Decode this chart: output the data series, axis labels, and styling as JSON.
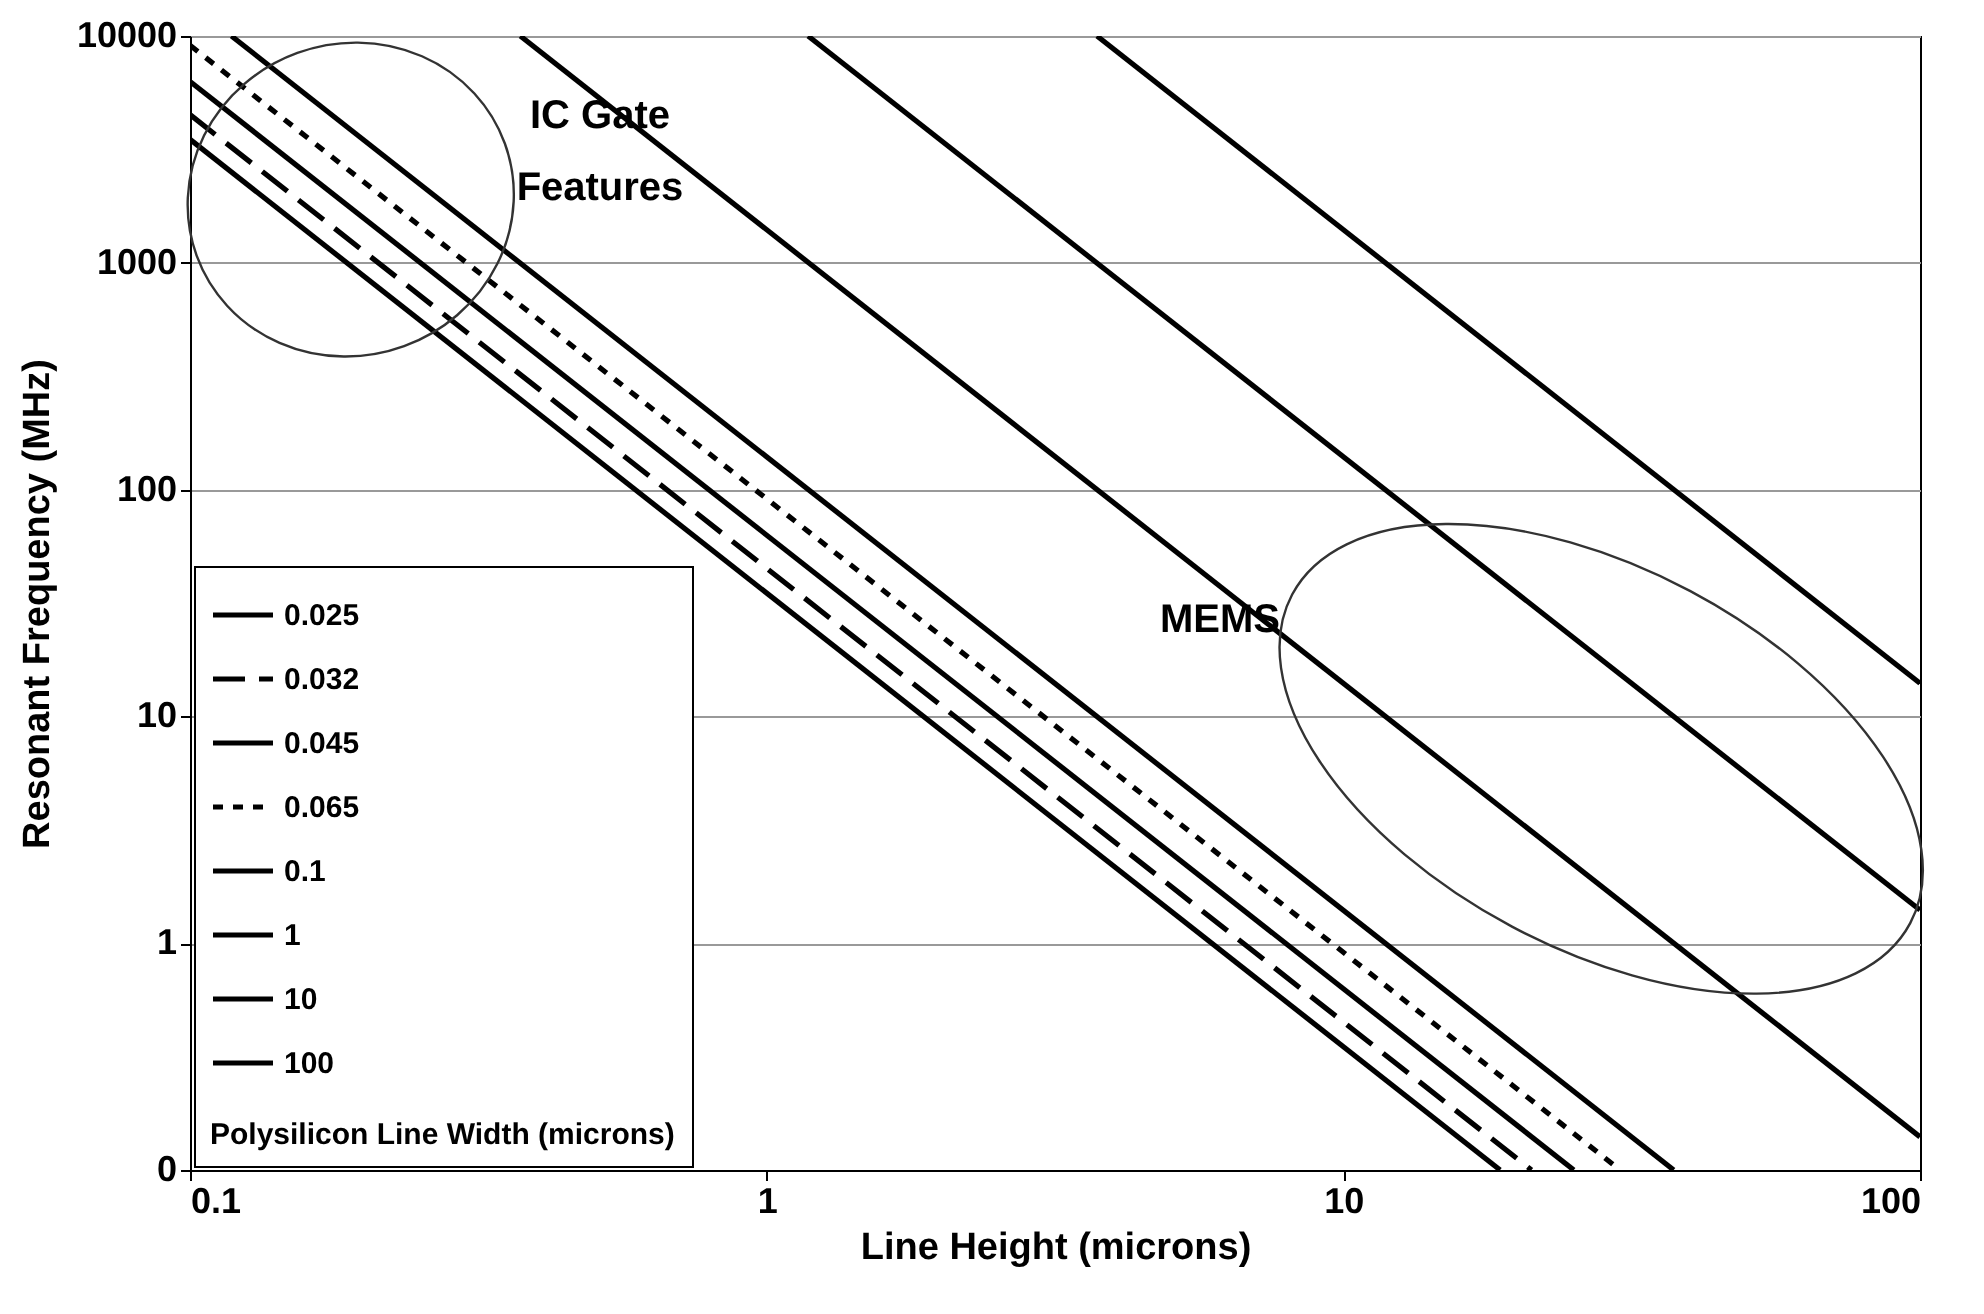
{
  "chart_data": {
    "type": "line",
    "xlabel": "Line Height (microns)",
    "ylabel": "Resonant Frequency (MHz)",
    "legend_title": "Polysilicon Line Width (microns)",
    "log": "xy",
    "xlim": [
      0.1,
      100
    ],
    "ylim": [
      0.1,
      10000
    ],
    "xticks": [
      0.1,
      1,
      10,
      100
    ],
    "yticks": [
      {
        "value": 0.1,
        "label": "0"
      },
      1,
      10,
      100,
      1000,
      10000
    ],
    "grid": "y",
    "legend": "bottom left",
    "marker": "none",
    "series": [
      {
        "name": "0.025",
        "color": "#000000",
        "line_style": "solid",
        "x": [
          0.1,
          18.7
        ],
        "values": [
          3500,
          0.1
        ]
      },
      {
        "name": "0.032",
        "color": "#000000",
        "line_style": "dashed",
        "x": [
          0.1,
          21.2
        ],
        "values": [
          4500,
          0.1
        ]
      },
      {
        "name": "0.045",
        "color": "#000000",
        "line_style": "solid",
        "x": [
          0.1,
          25.1
        ],
        "values": [
          6300,
          0.1
        ]
      },
      {
        "name": "0.065",
        "color": "#000000",
        "line_style": "dotted",
        "x": [
          0.1,
          30.2
        ],
        "values": [
          9100,
          0.1
        ]
      },
      {
        "name": "0.1",
        "color": "#000000",
        "line_style": "solid",
        "x": [
          0.118,
          37.4
        ],
        "values": [
          10000,
          0.1
        ]
      },
      {
        "name": "1",
        "color": "#000000",
        "line_style": "solid",
        "x": [
          0.374,
          100
        ],
        "values": [
          10000,
          0.14
        ]
      },
      {
        "name": "10",
        "color": "#000000",
        "line_style": "solid",
        "x": [
          1.18,
          100
        ],
        "values": [
          10000,
          1.4
        ]
      },
      {
        "name": "100",
        "color": "#000000",
        "line_style": "solid",
        "x": [
          3.74,
          100
        ],
        "values": [
          10000,
          14
        ]
      }
    ],
    "annotations": [
      "IC Gate\nFeatures",
      "MEMS"
    ]
  }
}
